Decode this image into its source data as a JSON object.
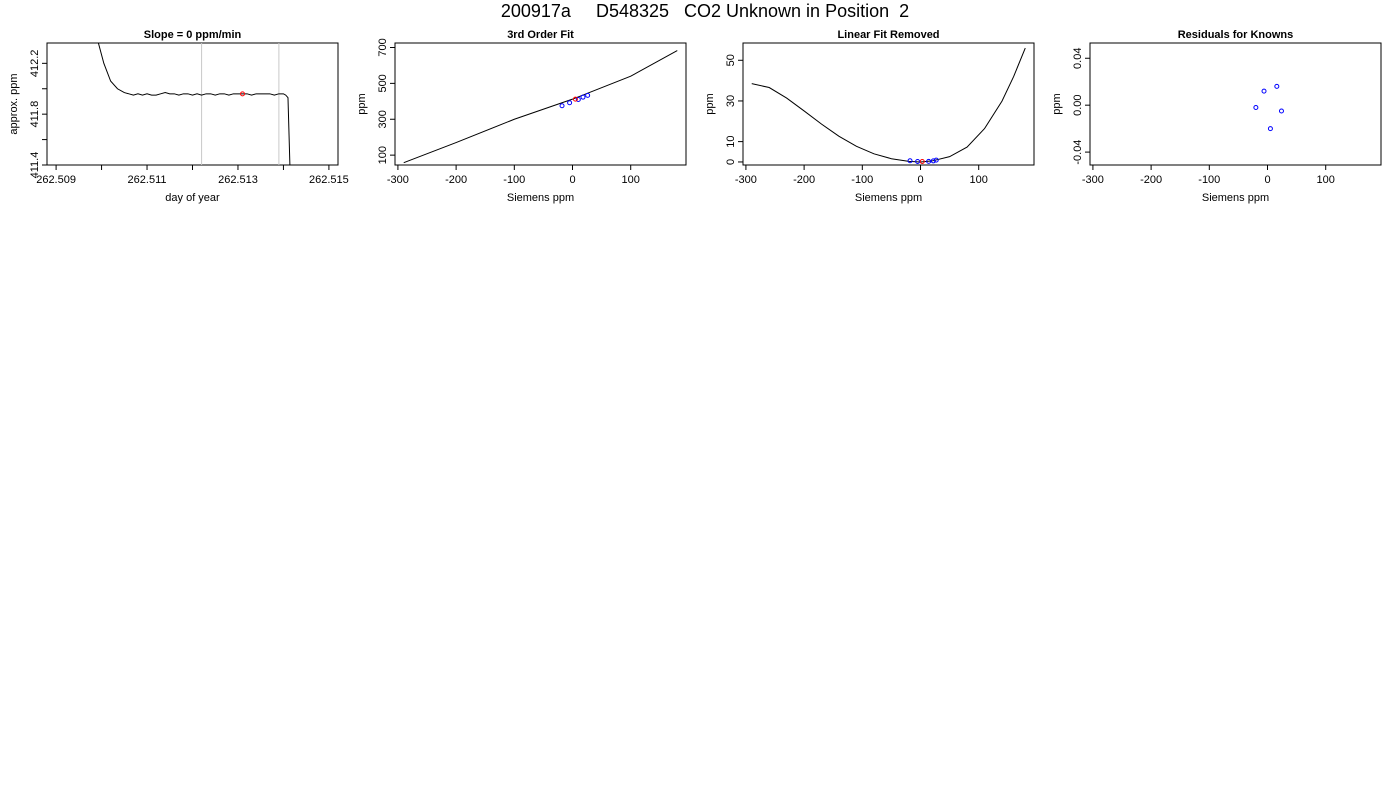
{
  "page": {
    "title": "200917a     D548325   CO2 Unknown in Position  2"
  },
  "chart_data": [
    {
      "type": "line",
      "title": "Slope =  0  ppm/min",
      "xlabel": "day of year",
      "ylabel": "approx. ppm",
      "xlim": [
        262.5088,
        262.5152
      ],
      "ylim": [
        411.4,
        412.36
      ],
      "x_ticks": [
        262.509,
        262.51,
        262.511,
        262.512,
        262.513,
        262.514,
        262.515
      ],
      "x_tick_labels": [
        "262.509",
        "",
        "262.511",
        "",
        "262.513",
        "",
        "262.515"
      ],
      "y_ticks": [
        411.4,
        411.6,
        411.8,
        412.0,
        412.2
      ],
      "y_tick_labels": [
        "411.4",
        "",
        "411.8",
        "",
        "412.2"
      ],
      "vlines": [
        262.5122,
        262.5139
      ],
      "series": [
        {
          "x": [
            262.5099,
            262.51005,
            262.5102,
            262.51035,
            262.5105,
            262.5106,
            262.5107,
            262.5108,
            262.5109,
            262.511,
            262.5111,
            262.5112,
            262.5113,
            262.5114,
            262.5115,
            262.5116,
            262.5117,
            262.5118,
            262.5119,
            262.512,
            262.5121,
            262.5122,
            262.5123,
            262.5124,
            262.5125,
            262.5126,
            262.5127,
            262.5128,
            262.5129,
            262.513,
            262.5131,
            262.5132,
            262.5133,
            262.5134,
            262.5135,
            262.5136,
            262.5137,
            262.5138,
            262.5139,
            262.514,
            262.51405,
            262.5141,
            262.51415
          ],
          "y": [
            412.4,
            412.2,
            412.06,
            412.0,
            411.97,
            411.96,
            411.95,
            411.96,
            411.95,
            411.96,
            411.95,
            411.95,
            411.96,
            411.97,
            411.96,
            411.96,
            411.95,
            411.96,
            411.96,
            411.95,
            411.96,
            411.95,
            411.96,
            411.96,
            411.95,
            411.96,
            411.96,
            411.95,
            411.96,
            411.96,
            411.96,
            411.96,
            411.95,
            411.96,
            411.96,
            411.96,
            411.96,
            411.95,
            411.96,
            411.96,
            411.95,
            411.93,
            411.3
          ]
        }
      ],
      "highlight_point": {
        "x": 262.5131,
        "y": 411.96,
        "color": "#ff0000"
      }
    },
    {
      "type": "line",
      "title": "3rd Order Fit",
      "xlabel": "Siemens ppm",
      "ylabel": "ppm",
      "xlim": [
        -305,
        195
      ],
      "ylim": [
        45,
        725
      ],
      "x_ticks": [
        -300,
        -200,
        -100,
        0,
        100
      ],
      "x_tick_labels": [
        "-300",
        "-200",
        "-100",
        "0",
        "100"
      ],
      "y_ticks": [
        100,
        300,
        500,
        700
      ],
      "y_tick_labels": [
        "100",
        "300",
        "500",
        "700"
      ],
      "series": [
        {
          "x": [
            -290,
            -200,
            -100,
            0,
            100,
            180
          ],
          "y": [
            58,
            170,
            300,
            412,
            540,
            683
          ]
        }
      ],
      "knowns": {
        "x": [
          -18,
          -5,
          10,
          18,
          26
        ],
        "y": [
          375,
          392,
          410,
          423,
          433
        ],
        "color": "#0000ff"
      },
      "unknown": {
        "x": 5,
        "y": 412,
        "color": "#ff0000"
      }
    },
    {
      "type": "line",
      "title": "Linear Fit Removed",
      "xlabel": "Siemens ppm",
      "ylabel": "ppm",
      "xlim": [
        -305,
        195
      ],
      "ylim": [
        -1.5,
        58.5
      ],
      "x_ticks": [
        -300,
        -200,
        -100,
        0,
        100
      ],
      "x_tick_labels": [
        "-300",
        "-200",
        "-100",
        "0",
        "100"
      ],
      "y_ticks": [
        0,
        10,
        30,
        50
      ],
      "y_tick_labels": [
        "0",
        "10",
        "30",
        "50"
      ],
      "series": [
        {
          "x": [
            -290,
            -260,
            -230,
            -200,
            -170,
            -140,
            -110,
            -80,
            -50,
            -20,
            0,
            20,
            50,
            80,
            110,
            140,
            160,
            180
          ],
          "y": [
            38.5,
            36.6,
            31.4,
            25.1,
            18.6,
            12.6,
            7.7,
            4.0,
            1.6,
            0.3,
            0.0,
            0.5,
            2.6,
            7.3,
            16.4,
            29.9,
            42.0,
            56.0
          ]
        }
      ],
      "knowns": {
        "x": [
          -18,
          -5,
          14,
          22,
          27
        ],
        "y": [
          0.6,
          0.2,
          0.3,
          0.5,
          0.9
        ],
        "color": "#0000ff"
      },
      "unknown": {
        "x": 3,
        "y": 0.2,
        "color": "#ff0000"
      }
    },
    {
      "type": "scatter",
      "title": "Residuals for Knowns",
      "xlabel": "Siemens ppm",
      "ylabel": "ppm",
      "xlim": [
        -305,
        195
      ],
      "ylim": [
        -0.051,
        0.053
      ],
      "x_ticks": [
        -300,
        -200,
        -100,
        0,
        100
      ],
      "x_tick_labels": [
        "-300",
        "-200",
        "-100",
        "0",
        "100"
      ],
      "y_ticks": [
        -0.04,
        0.0,
        0.04
      ],
      "y_tick_labels": [
        "-0.04",
        "0.00",
        "0.04"
      ],
      "points": {
        "x": [
          -20,
          -6,
          5,
          16,
          24
        ],
        "y": [
          -0.002,
          0.012,
          -0.02,
          0.016,
          -0.005
        ],
        "color": "#0000ff"
      }
    }
  ]
}
